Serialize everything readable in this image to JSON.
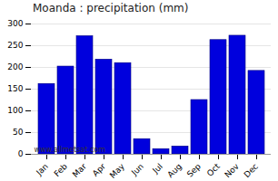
{
  "chart_data": {
    "type": "bar",
    "title": "Moanda : precipitation (mm)",
    "categories": [
      "Jan",
      "Feb",
      "Mar",
      "Apr",
      "May",
      "Jun",
      "Jul",
      "Aug",
      "Sep",
      "Oct",
      "Nov",
      "Dec"
    ],
    "values": [
      162,
      202,
      272,
      218,
      210,
      35,
      12,
      18,
      125,
      263,
      273,
      192
    ],
    "color": "#0000dd",
    "ylim": [
      0,
      300
    ],
    "yticks": [
      0,
      50,
      100,
      150,
      200,
      250,
      300
    ],
    "grid": true,
    "annotation": "www.allmetsat.com"
  }
}
